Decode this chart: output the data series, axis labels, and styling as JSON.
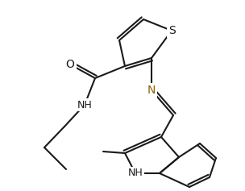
{
  "bg_color": "#ffffff",
  "line_color": "#1a1a1a",
  "n_color": "#8B6400",
  "linewidth": 1.5,
  "figsize": [
    3.04,
    2.37
  ],
  "dpi": 100,
  "xlim": [
    0,
    304
  ],
  "ylim": [
    0,
    237
  ],
  "s_label": "S",
  "o_label": "O",
  "n_label": "N",
  "nh_label": "NH",
  "nh2_label": "NH"
}
